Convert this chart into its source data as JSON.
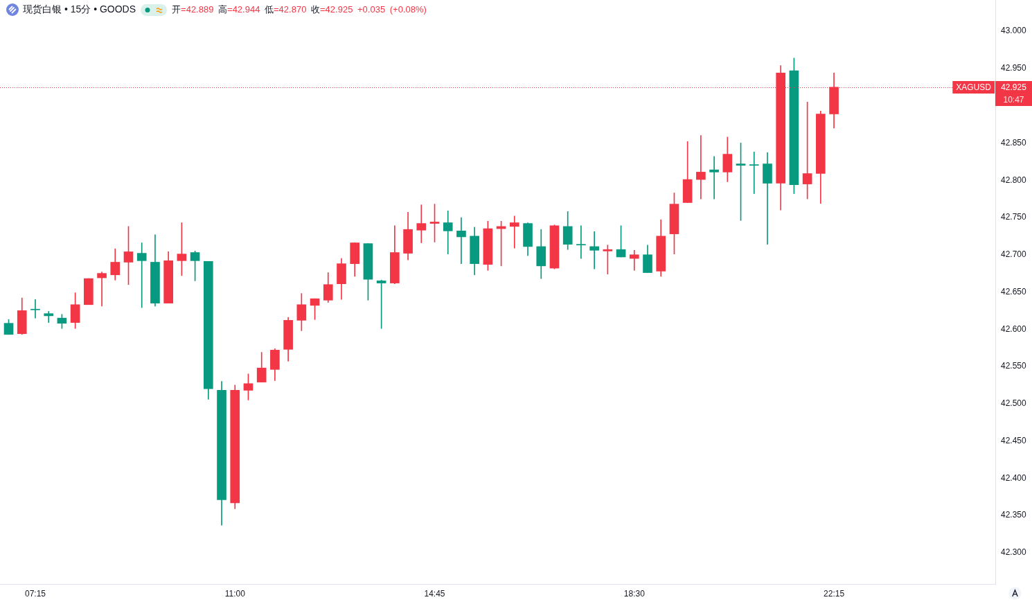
{
  "chart_data": {
    "type": "candlestick",
    "title": "现货白银 • 15分 • GOODS",
    "subtitle": "开=42.889 高=42.944 低=42.870 收=42.925 +0.035 (+0.08%)",
    "x": [
      6.75,
      7,
      7.25,
      7.5,
      7.75,
      8,
      8.25,
      8.5,
      8.75,
      9,
      9.25,
      9.5,
      9.75,
      10,
      10.25,
      10.5,
      10.75,
      11,
      11.25,
      11.5,
      11.75,
      12,
      12.25,
      12.5,
      12.75,
      13,
      13.25,
      13.5,
      13.75,
      14,
      14.25,
      14.5,
      14.75,
      15,
      15.25,
      15.5,
      15.75,
      16,
      16.25,
      16.5,
      16.75,
      17,
      17.25,
      17.5,
      17.75,
      18,
      18.25,
      18.5,
      18.75,
      19,
      19.25,
      19.5,
      19.75,
      20,
      20.25,
      20.5,
      20.75,
      21,
      21.25,
      21.5,
      21.75,
      22,
      22.25
    ],
    "ohlc": [
      [
        42.608,
        42.613,
        42.593,
        42.593
      ],
      [
        42.594,
        42.642,
        42.593,
        42.625
      ],
      [
        42.627,
        42.64,
        42.615,
        42.626
      ],
      [
        42.621,
        42.624,
        42.609,
        42.618
      ],
      [
        42.615,
        42.62,
        42.601,
        42.608
      ],
      [
        42.609,
        42.649,
        42.601,
        42.633
      ],
      [
        42.633,
        42.668,
        42.633,
        42.668
      ],
      [
        42.669,
        42.677,
        42.631,
        42.675
      ],
      [
        42.673,
        42.708,
        42.666,
        42.69
      ],
      [
        42.69,
        42.738,
        42.66,
        42.704
      ],
      [
        42.702,
        42.716,
        42.629,
        42.692
      ],
      [
        42.69,
        42.727,
        42.631,
        42.635
      ],
      [
        42.635,
        42.704,
        42.635,
        42.692
      ],
      [
        42.692,
        42.743,
        42.672,
        42.701
      ],
      [
        42.703,
        42.705,
        42.665,
        42.692
      ],
      [
        42.691,
        42.691,
        42.506,
        42.52
      ],
      [
        42.518,
        42.53,
        42.337,
        42.371
      ],
      [
        42.367,
        42.525,
        42.359,
        42.518
      ],
      [
        42.518,
        42.54,
        42.505,
        42.527
      ],
      [
        42.529,
        42.569,
        42.529,
        42.548
      ],
      [
        42.546,
        42.574,
        42.531,
        42.572
      ],
      [
        42.573,
        42.616,
        42.557,
        42.612
      ],
      [
        42.612,
        42.648,
        42.598,
        42.633
      ],
      [
        42.632,
        42.641,
        42.613,
        42.641
      ],
      [
        42.639,
        42.676,
        42.636,
        42.66
      ],
      [
        42.661,
        42.695,
        42.64,
        42.688
      ],
      [
        42.688,
        42.716,
        42.671,
        42.716
      ],
      [
        42.715,
        42.715,
        42.639,
        42.667
      ],
      [
        42.665,
        42.666,
        42.601,
        42.662
      ],
      [
        42.662,
        42.739,
        42.661,
        42.703
      ],
      [
        42.702,
        42.757,
        42.693,
        42.734
      ],
      [
        42.733,
        42.767,
        42.716,
        42.742
      ],
      [
        42.742,
        42.768,
        42.717,
        42.744
      ],
      [
        42.743,
        42.759,
        42.701,
        42.732
      ],
      [
        42.732,
        42.75,
        42.688,
        42.724
      ],
      [
        42.725,
        42.737,
        42.673,
        42.688
      ],
      [
        42.687,
        42.745,
        42.679,
        42.735
      ],
      [
        42.735,
        42.745,
        42.685,
        42.738
      ],
      [
        42.738,
        42.752,
        42.709,
        42.743
      ],
      [
        42.742,
        42.743,
        42.699,
        42.711
      ],
      [
        42.711,
        42.734,
        42.668,
        42.685
      ],
      [
        42.682,
        42.74,
        42.681,
        42.739
      ],
      [
        42.738,
        42.758,
        42.707,
        42.714
      ],
      [
        42.714,
        42.739,
        42.695,
        42.713
      ],
      [
        42.711,
        42.731,
        42.681,
        42.706
      ],
      [
        42.705,
        42.713,
        42.674,
        42.707
      ],
      [
        42.707,
        42.739,
        42.697,
        42.697
      ],
      [
        42.695,
        42.706,
        42.679,
        42.7
      ],
      [
        42.7,
        42.713,
        42.676,
        42.676
      ],
      [
        42.678,
        42.747,
        42.671,
        42.725
      ],
      [
        42.728,
        42.783,
        42.701,
        42.768
      ],
      [
        42.77,
        42.852,
        42.77,
        42.801
      ],
      [
        42.801,
        42.86,
        42.775,
        42.811
      ],
      [
        42.814,
        42.832,
        42.775,
        42.811
      ],
      [
        42.811,
        42.858,
        42.798,
        42.835
      ],
      [
        42.822,
        42.85,
        42.746,
        42.82
      ],
      [
        42.821,
        42.838,
        42.782,
        42.82
      ],
      [
        42.822,
        42.837,
        42.714,
        42.796
      ],
      [
        42.796,
        42.954,
        42.76,
        42.944
      ],
      [
        42.947,
        42.964,
        42.782,
        42.794
      ],
      [
        42.795,
        42.905,
        42.775,
        42.809
      ],
      [
        42.809,
        42.893,
        42.769,
        42.889
      ],
      [
        42.889,
        42.944,
        42.87,
        42.925
      ]
    ],
    "colors": [
      "#089981",
      "#f23645",
      "#089981",
      "#089981",
      "#089981",
      "#f23645",
      "#f23645",
      "#f23645",
      "#f23645",
      "#f23645",
      "#089981",
      "#089981",
      "#f23645",
      "#f23645",
      "#089981",
      "#089981",
      "#089981",
      "#f23645",
      "#f23645",
      "#f23645",
      "#f23645",
      "#f23645",
      "#f23645",
      "#f23645",
      "#f23645",
      "#f23645",
      "#f23645",
      "#089981",
      "#089981",
      "#f23645",
      "#f23645",
      "#f23645",
      "#f23645",
      "#089981",
      "#089981",
      "#089981",
      "#f23645",
      "#f23645",
      "#f23645",
      "#089981",
      "#089981",
      "#f23645",
      "#089981",
      "#089981",
      "#089981",
      "#f23645",
      "#089981",
      "#f23645",
      "#089981",
      "#f23645",
      "#f23645",
      "#f23645",
      "#f23645",
      "#089981",
      "#f23645",
      "#089981",
      "#089981",
      "#089981",
      "#f23645",
      "#089981",
      "#f23645",
      "#f23645",
      "#f23645"
    ],
    "xlim": [
      6.587,
      25.28
    ],
    "xticks": [
      {
        "value": 7.25,
        "label": "07:15"
      },
      {
        "value": 11,
        "label": "11:00"
      },
      {
        "value": 14.75,
        "label": "14:45"
      },
      {
        "value": 18.5,
        "label": "18:30"
      },
      {
        "value": 22.25,
        "label": "22:15"
      }
    ],
    "ylim": [
      42.258,
      43.042
    ],
    "yticks": [
      {
        "value": 42.3,
        "label": "42.300"
      },
      {
        "value": 42.35,
        "label": "42.350"
      },
      {
        "value": 42.4,
        "label": "42.400"
      },
      {
        "value": 42.45,
        "label": "42.450"
      },
      {
        "value": 42.5,
        "label": "42.500"
      },
      {
        "value": 42.55,
        "label": "42.550"
      },
      {
        "value": 42.6,
        "label": "42.600"
      },
      {
        "value": 42.65,
        "label": "42.650"
      },
      {
        "value": 42.7,
        "label": "42.700"
      },
      {
        "value": 42.75,
        "label": "42.750"
      },
      {
        "value": 42.8,
        "label": "42.800"
      },
      {
        "value": 42.85,
        "label": "42.850"
      },
      {
        "value": 42.95,
        "label": "42.950"
      },
      {
        "value": 43,
        "label": "43.000"
      }
    ],
    "ref_lines": [
      {
        "axis": "y",
        "value": 42.925,
        "label": "XAGUSD",
        "color": "#f23645",
        "line_style": "dotted"
      }
    ],
    "annotations": [
      "42.925",
      "10:47"
    ]
  }
}
